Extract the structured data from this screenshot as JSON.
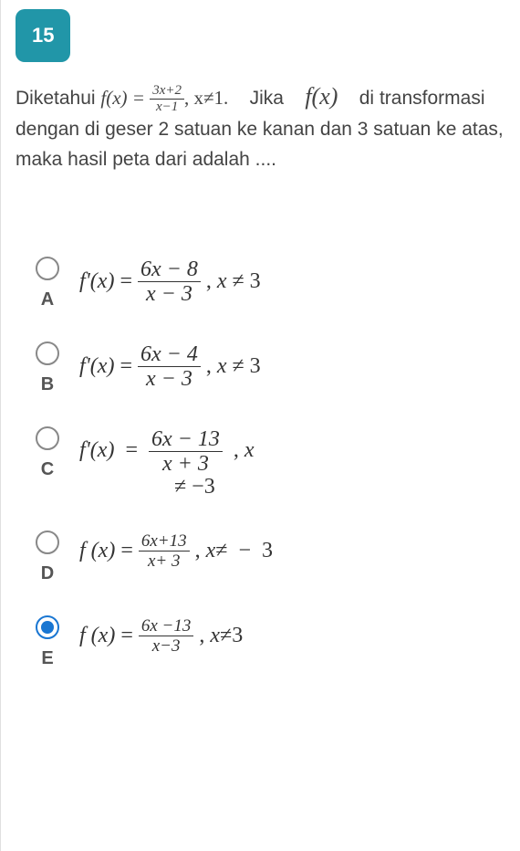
{
  "question_number": "15",
  "question": {
    "prefix": "Diketahui ",
    "func_lhs": "f(x) = ",
    "frac_num": "3x+2",
    "frac_den": "x−1",
    "cond1": ", x≠1.",
    "mid": "Jika",
    "fx": "f(x)",
    "suffix1": "di",
    "line2": "transformasi dengan di geser 2 satuan ke kanan dan 3 satuan ke atas, maka hasil peta dari  adalah ...."
  },
  "options": {
    "A": {
      "lhs": "f'(x)",
      "num": "6x  −  8",
      "den": "x − 3",
      "cond": ", x ≠ 3",
      "selected": false
    },
    "B": {
      "lhs": "f'(x)",
      "num": "6x  −  4",
      "den": "x − 3",
      "cond": ", x ≠ 3",
      "selected": false
    },
    "C": {
      "lhs": "f'(x)",
      "num": "6x  −  13",
      "den": "x  +  3",
      "cond": ", x",
      "cond2": "≠ −3",
      "selected": false
    },
    "D": {
      "lhs": "f (x)",
      "num": "6x+13",
      "den": "x+ 3",
      "cond": ", x≠  −  3",
      "selected": false
    },
    "E": {
      "lhs": "f (x)",
      "num": "6x −13",
      "den": "x−3",
      "cond": ", x≠3",
      "selected": true
    }
  },
  "letters": {
    "A": "A",
    "B": "B",
    "C": "C",
    "D": "D",
    "E": "E"
  },
  "colors": {
    "badge_bg": "#2196a8",
    "radio_selected": "#1976d2",
    "text": "#444444"
  }
}
